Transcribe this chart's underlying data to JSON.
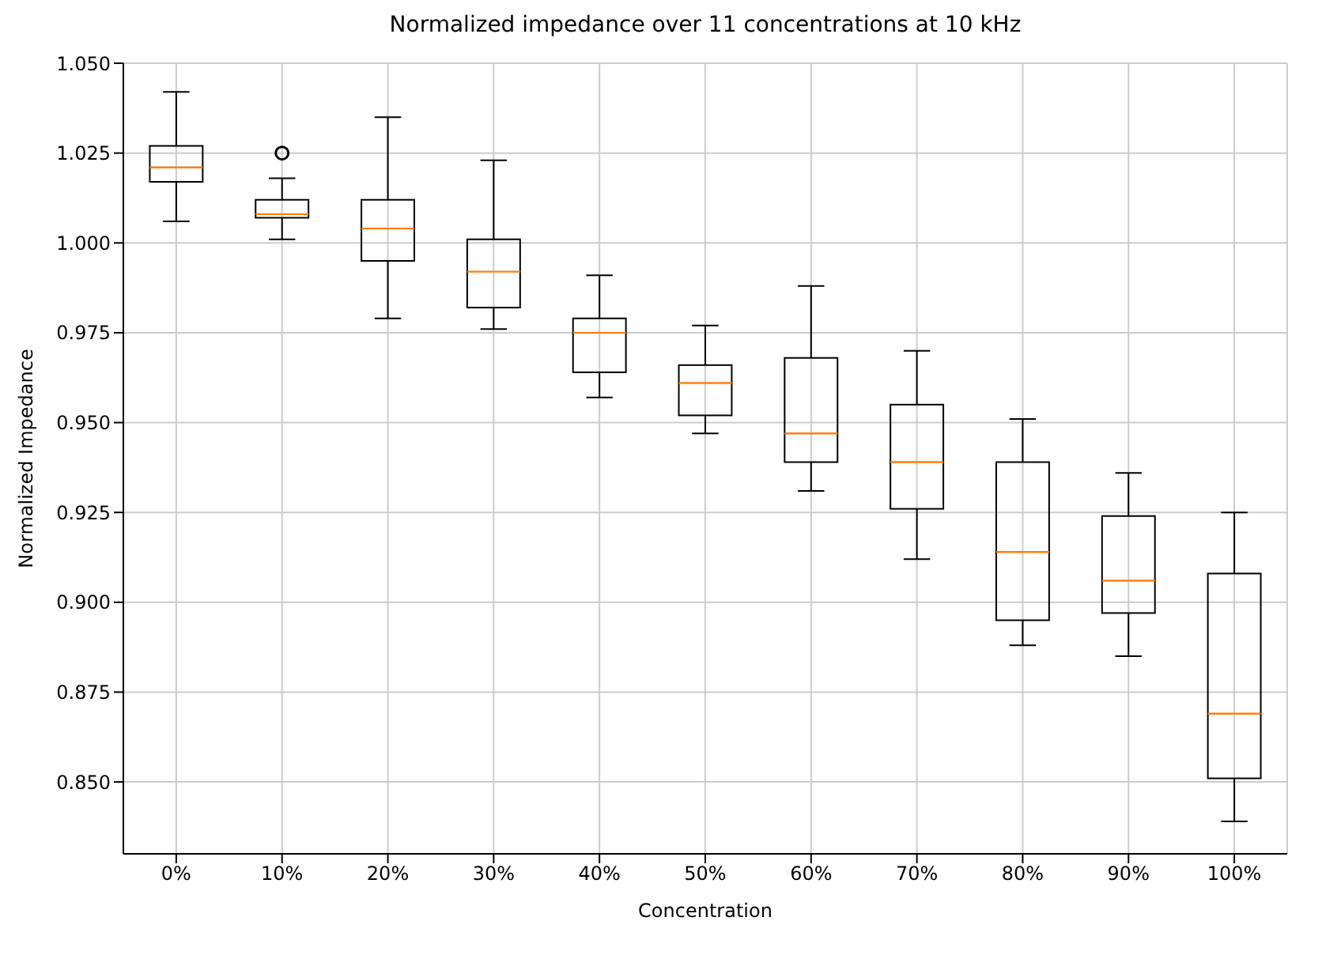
{
  "chart_data": {
    "type": "box",
    "title": "Normalized impedance over 11 concentrations at 10 kHz",
    "xlabel": "Concentration",
    "ylabel": "Normalized Impedance",
    "categories": [
      "0%",
      "10%",
      "20%",
      "30%",
      "40%",
      "50%",
      "60%",
      "70%",
      "80%",
      "90%",
      "100%"
    ],
    "boxes": [
      {
        "low": 1.006,
        "q1": 1.017,
        "median": 1.021,
        "q3": 1.027,
        "high": 1.042
      },
      {
        "low": 1.001,
        "q1": 1.007,
        "median": 1.008,
        "q3": 1.012,
        "high": 1.018,
        "outliers": [
          1.025
        ]
      },
      {
        "low": 0.979,
        "q1": 0.995,
        "median": 1.004,
        "q3": 1.012,
        "high": 1.035
      },
      {
        "low": 0.976,
        "q1": 0.982,
        "median": 0.992,
        "q3": 1.001,
        "high": 1.023
      },
      {
        "low": 0.957,
        "q1": 0.964,
        "median": 0.975,
        "q3": 0.979,
        "high": 0.991
      },
      {
        "low": 0.947,
        "q1": 0.952,
        "median": 0.961,
        "q3": 0.966,
        "high": 0.977
      },
      {
        "low": 0.931,
        "q1": 0.939,
        "median": 0.947,
        "q3": 0.968,
        "high": 0.988
      },
      {
        "low": 0.912,
        "q1": 0.926,
        "median": 0.939,
        "q3": 0.955,
        "high": 0.97
      },
      {
        "low": 0.888,
        "q1": 0.895,
        "median": 0.914,
        "q3": 0.939,
        "high": 0.951
      },
      {
        "low": 0.885,
        "q1": 0.897,
        "median": 0.906,
        "q3": 0.924,
        "high": 0.936
      },
      {
        "low": 0.839,
        "q1": 0.851,
        "median": 0.869,
        "q3": 0.908,
        "high": 0.925
      }
    ],
    "ylim": [
      0.83,
      1.05
    ],
    "yticks": [
      {
        "value": 0.85,
        "label": "0.850"
      },
      {
        "value": 0.875,
        "label": "0.875"
      },
      {
        "value": 0.9,
        "label": "0.900"
      },
      {
        "value": 0.925,
        "label": "0.925"
      },
      {
        "value": 0.95,
        "label": "0.950"
      },
      {
        "value": 0.975,
        "label": "0.975"
      },
      {
        "value": 1.0,
        "label": "1.000"
      },
      {
        "value": 1.025,
        "label": "1.025"
      },
      {
        "value": 1.05,
        "label": "1.050"
      }
    ],
    "grid": true
  }
}
